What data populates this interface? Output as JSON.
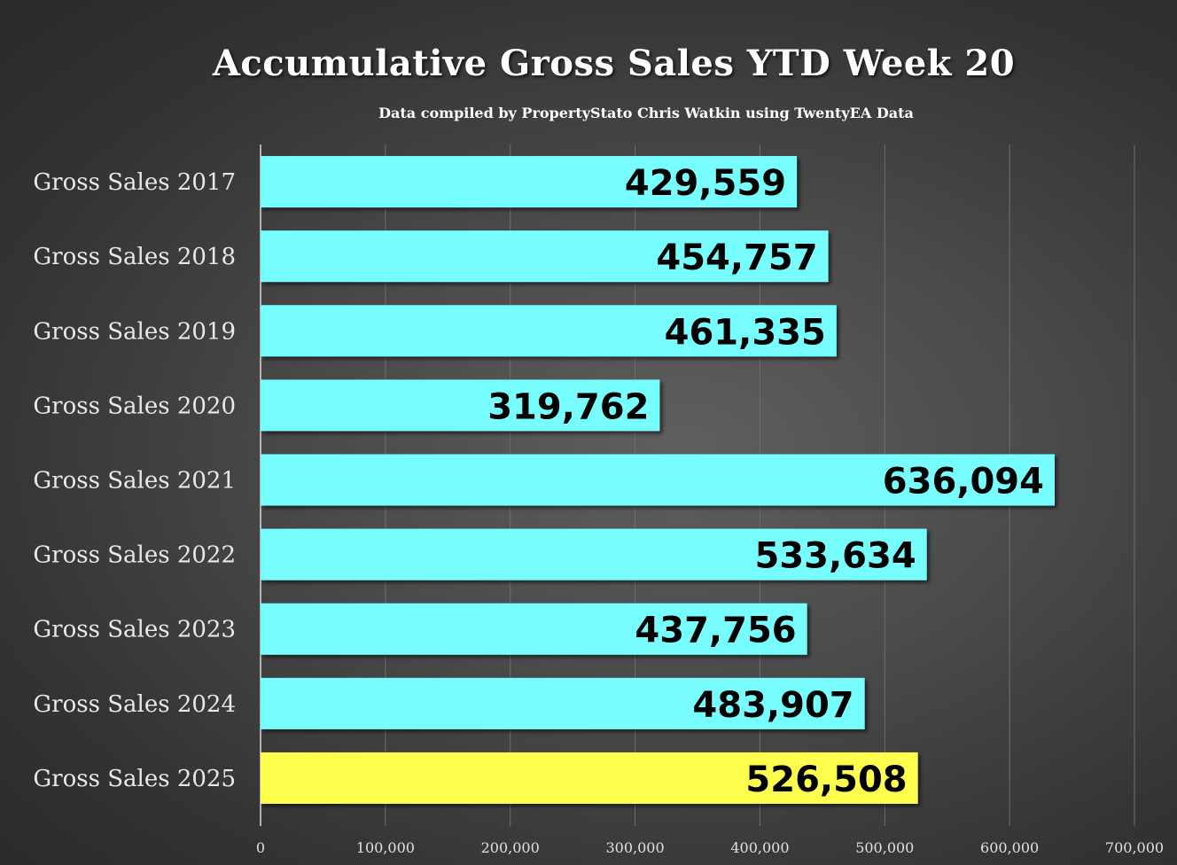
{
  "chart_data": {
    "type": "bar",
    "orientation": "horizontal",
    "title": "Accumulative Gross Sales YTD Week 20",
    "subtitle": "Data compiled by PropertyStato Chris Watkin using TwentyEA Data",
    "categories": [
      "Gross Sales 2017",
      "Gross Sales 2018",
      "Gross Sales 2019",
      "Gross Sales 2020",
      "Gross Sales 2021",
      "Gross Sales 2022",
      "Gross Sales 2023",
      "Gross Sales 2024",
      "Gross Sales 2025"
    ],
    "values": [
      429559,
      454757,
      461335,
      319762,
      636094,
      533634,
      437756,
      483907,
      526508
    ],
    "data_labels": [
      "429,559",
      "454,757",
      "461,335",
      "319,762",
      "636,094",
      "533,634",
      "437,756",
      "483,907",
      "526,508"
    ],
    "xlim": [
      0,
      700000
    ],
    "x_ticks": [
      0,
      100000,
      200000,
      300000,
      400000,
      500000,
      600000,
      700000
    ],
    "x_tick_labels": [
      "0",
      "100,000",
      "200,000",
      "300,000",
      "400,000",
      "500,000",
      "600,000",
      "700,000"
    ],
    "grid": true,
    "bar_color": "#77fdfe",
    "highlight_color": "#fdfe4e",
    "highlight_index": 8
  }
}
